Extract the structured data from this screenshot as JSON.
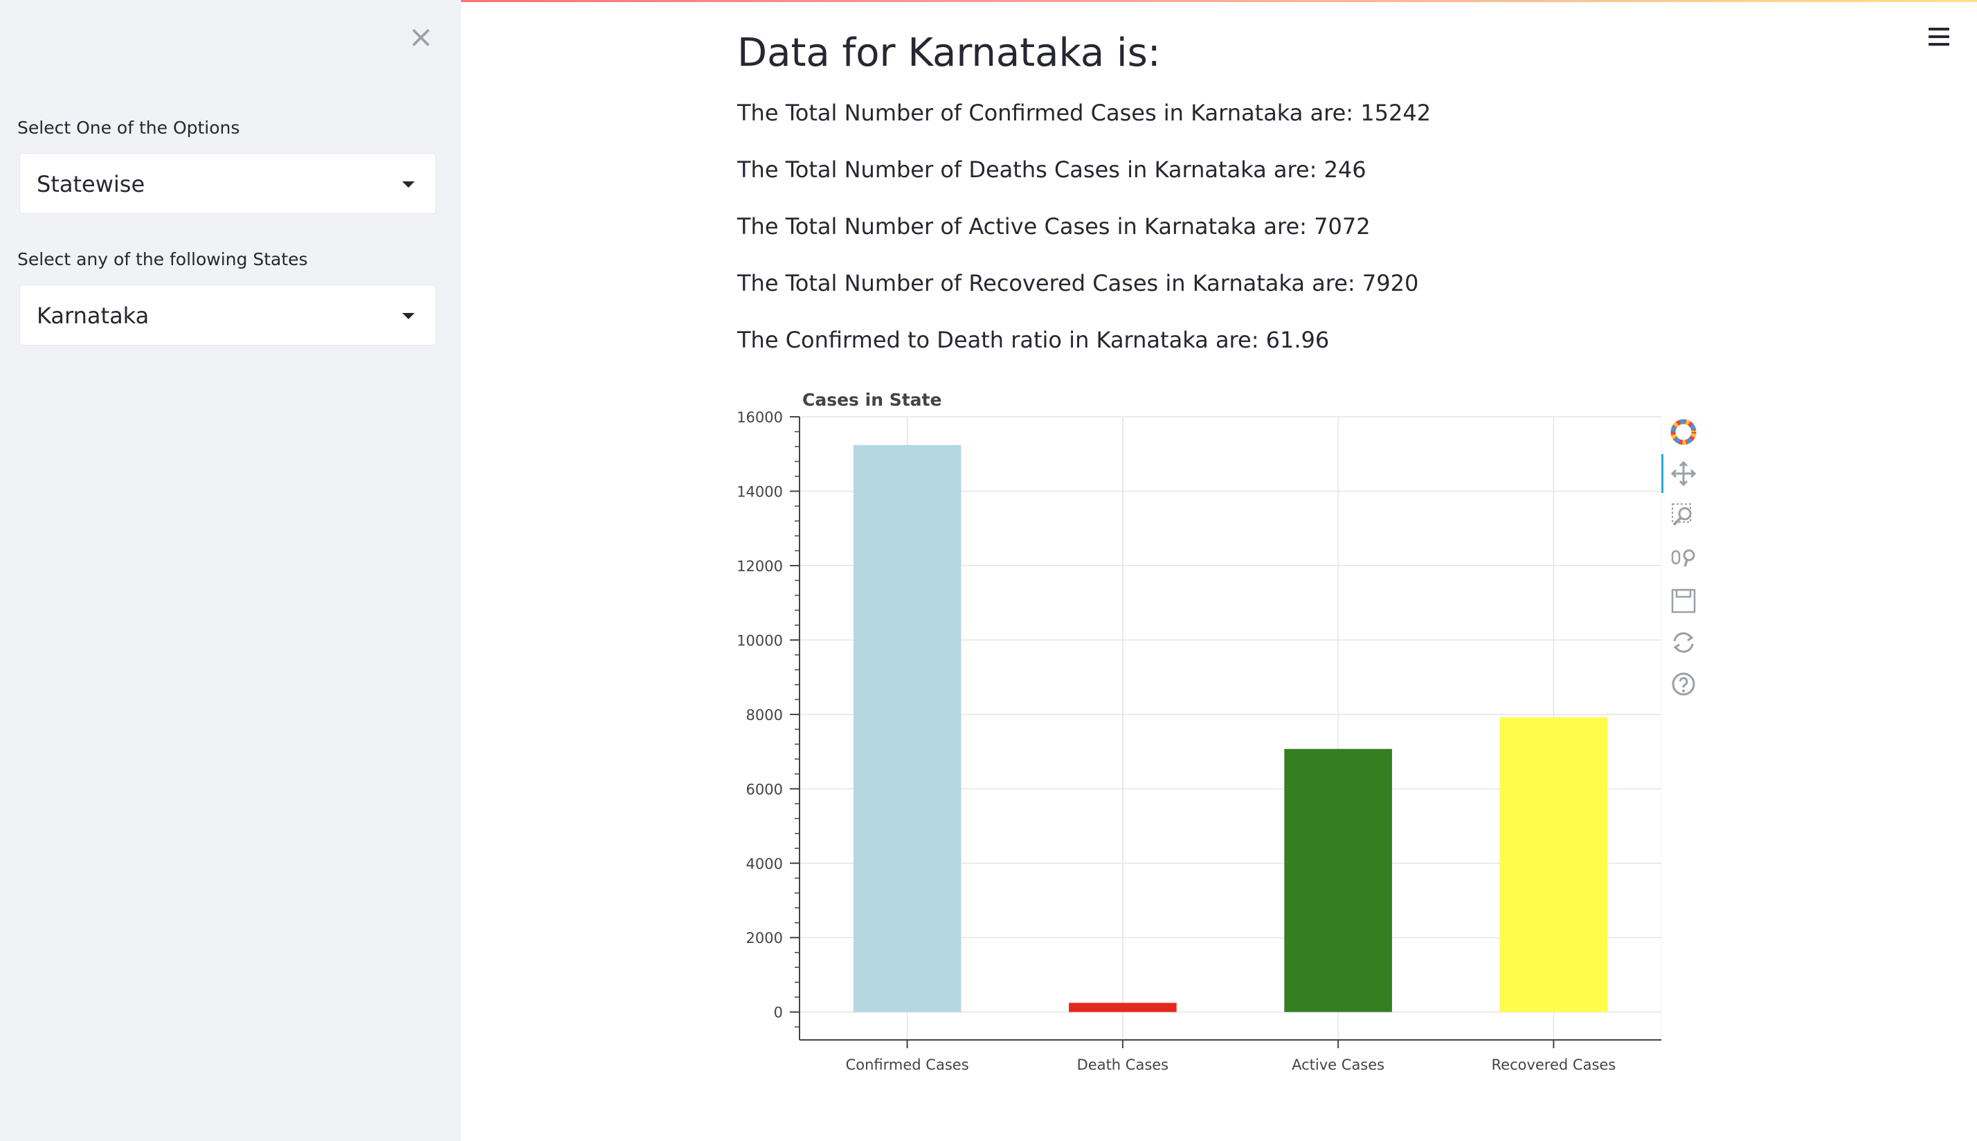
{
  "sidebar": {
    "close_label": "×",
    "option_label": "Select One of the Options",
    "option_value": "Statewise",
    "state_label": "Select any of the following States",
    "state_value": "Karnataka"
  },
  "main": {
    "title": "Data for Karnataka is:",
    "stats": [
      "The Total Number of Confirmed Cases in Karnataka are: 15242",
      "The Total Number of Deaths Cases in Karnataka are: 246",
      "The Total Number of Active Cases in Karnataka are: 7072",
      "The Total Number of Recovered Cases in Karnataka are: 7920",
      "The Confirmed to Death ratio in Karnataka are: 61.96"
    ]
  },
  "chart_data": {
    "type": "bar",
    "title": "Cases in State",
    "categories": [
      "Confirmed Cases",
      "Death Cases",
      "Active Cases",
      "Recovered Cases"
    ],
    "values": [
      15242,
      246,
      7072,
      7920
    ],
    "colors": [
      "#b5d7e2",
      "#e3281c",
      "#367e22",
      "#fffc4c"
    ],
    "ylim": [
      -750,
      16000
    ],
    "yticks": [
      0,
      2000,
      4000,
      6000,
      8000,
      10000,
      12000,
      14000,
      16000
    ],
    "grid": true
  },
  "toolbar": {
    "tools": [
      "bokeh-logo-icon",
      "pan-icon",
      "box-zoom-icon",
      "wheel-zoom-icon",
      "save-icon",
      "reset-icon",
      "help-icon"
    ]
  }
}
